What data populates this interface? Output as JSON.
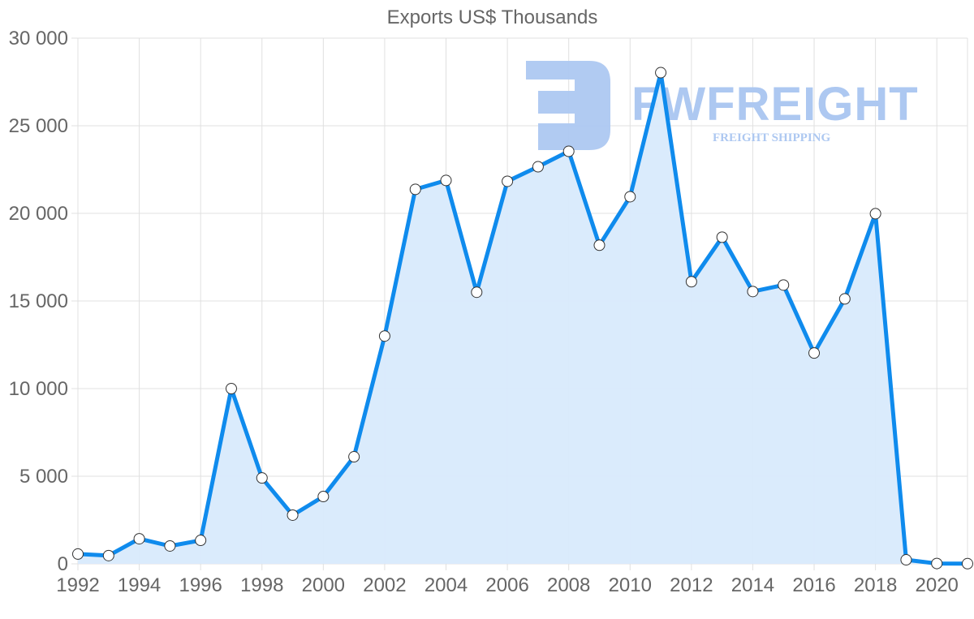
{
  "chart_data": {
    "type": "area",
    "title": "Exports US$ Thousands",
    "xlabel": "",
    "ylabel": "",
    "ylim": [
      0,
      30000
    ],
    "yticks": [
      0,
      5000,
      10000,
      15000,
      20000,
      25000,
      30000
    ],
    "ytick_labels": [
      "0",
      "5 000",
      "10 000",
      "15 000",
      "20 000",
      "25 000",
      "30 000"
    ],
    "xtick_labels": [
      "1992",
      "1994",
      "1996",
      "1998",
      "2000",
      "2002",
      "2004",
      "2006",
      "2008",
      "2010",
      "2012",
      "2014",
      "2016",
      "2018",
      "2020"
    ],
    "grid": true,
    "legend": null,
    "x": [
      1992,
      1993,
      1994,
      1995,
      1996,
      1997,
      1998,
      1999,
      2000,
      2001,
      2002,
      2003,
      2004,
      2005,
      2006,
      2007,
      2008,
      2009,
      2010,
      2011,
      2012,
      2013,
      2014,
      2015,
      2016,
      2017,
      2018,
      2019,
      2020,
      2021
    ],
    "series": [
      {
        "name": "Exports US$ Thousands",
        "values": [
          560,
          470,
          1430,
          1020,
          1340,
          10000,
          4900,
          2780,
          3840,
          6110,
          13000,
          21370,
          21880,
          15500,
          21830,
          22660,
          23540,
          18180,
          20950,
          28030,
          16100,
          18640,
          15540,
          15910,
          12030,
          15120,
          19980,
          230,
          20,
          10
        ]
      }
    ]
  },
  "watermark": {
    "brand": "FWFREIGHT",
    "tagline": "FREIGHT SHIPPING"
  },
  "colors": {
    "line": "#0f8bed",
    "fill": "#d8eafc",
    "grid": "#e0e0e0",
    "axis_text": "#666666",
    "watermark": "#adc8f1",
    "point_fill": "#ffffff",
    "point_stroke": "#333333"
  }
}
